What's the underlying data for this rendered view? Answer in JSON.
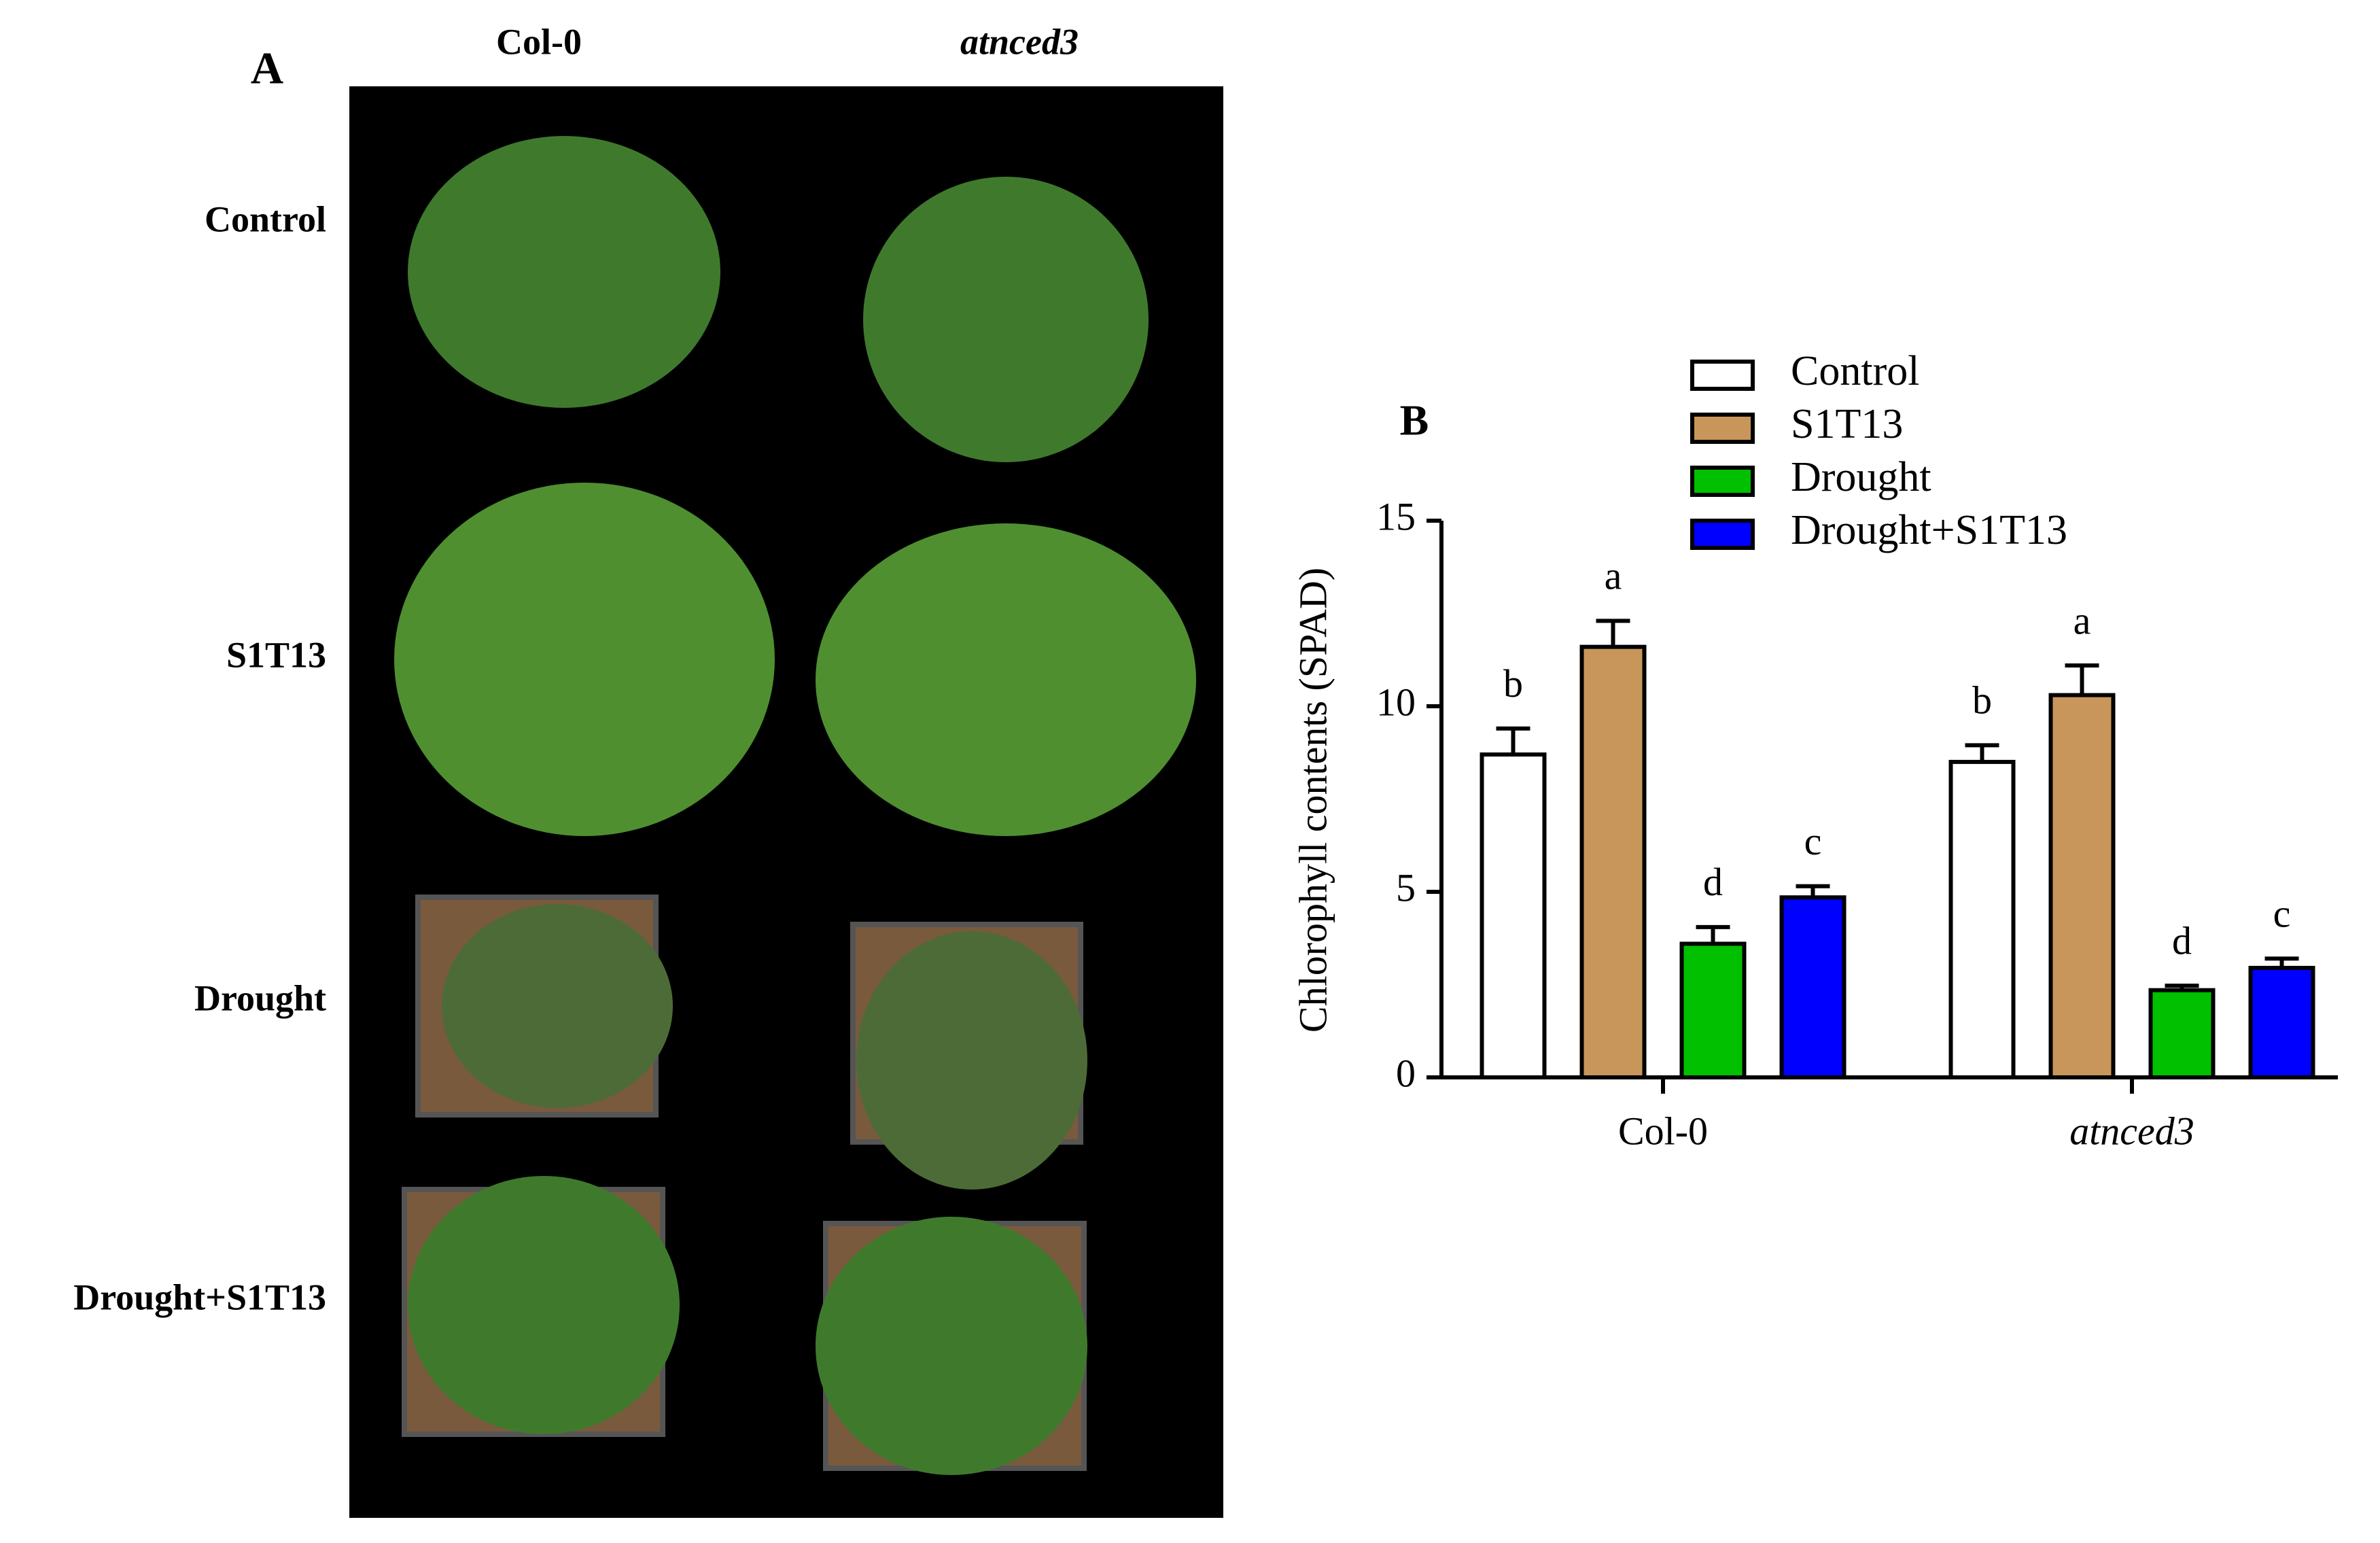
{
  "panel_a": {
    "label": "A",
    "columns": [
      "Col-0",
      "atnced3"
    ],
    "rows": [
      "Control",
      "S1T13",
      "Drought",
      "Drought+S1T13"
    ]
  },
  "chart_data": {
    "type": "bar",
    "label": "B",
    "y_label": "Chlorophyll contents (SPAD)",
    "categories": [
      "Col-0",
      "atnced3"
    ],
    "series": [
      {
        "name": "Control",
        "color": "#ffffff",
        "values": [
          8.7,
          8.5
        ],
        "errors": [
          0.7,
          0.45
        ],
        "significance": [
          "b",
          "b"
        ]
      },
      {
        "name": "S1T13",
        "color": "#c8965a",
        "values": [
          11.6,
          10.3
        ],
        "errors": [
          0.7,
          0.8
        ],
        "significance": [
          "a",
          "a"
        ]
      },
      {
        "name": "Drought",
        "color": "#00c000",
        "values": [
          3.6,
          2.35
        ],
        "errors": [
          0.45,
          0.12
        ],
        "significance": [
          "d",
          "d"
        ]
      },
      {
        "name": "Drought+S1T13",
        "color": "#0000ff",
        "values": [
          4.85,
          2.95
        ],
        "errors": [
          0.3,
          0.25
        ],
        "significance": [
          "c",
          "c"
        ]
      }
    ],
    "ylim": [
      0,
      15
    ],
    "yticks": [
      0,
      5,
      10,
      15
    ]
  }
}
